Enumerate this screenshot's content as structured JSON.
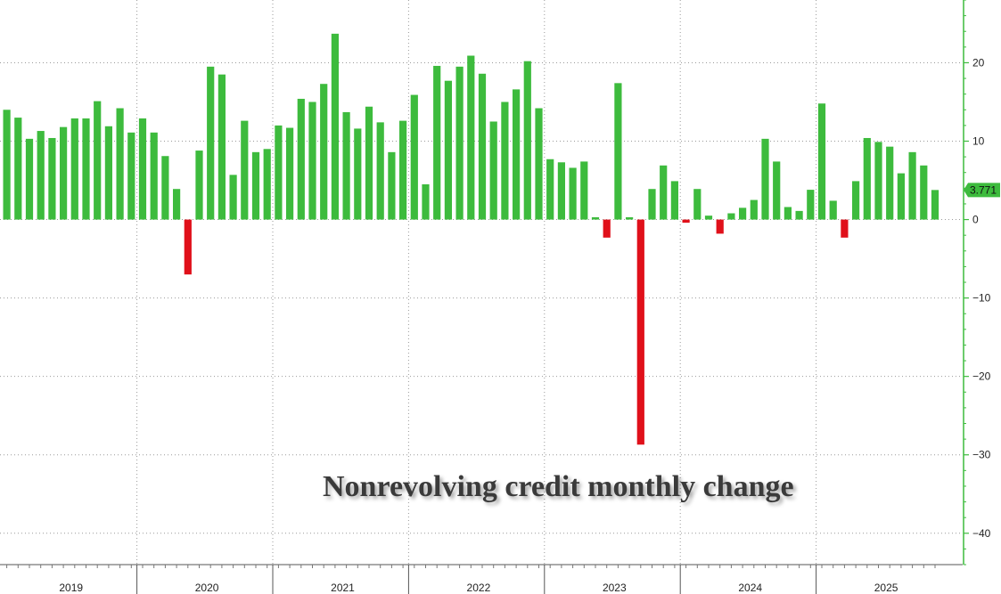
{
  "chart_data": {
    "type": "bar",
    "title": "Nonrevolving credit monthly change",
    "x_axis": {
      "tick_labels": [
        "2019",
        "2020",
        "2021",
        "2022",
        "2023",
        "2024",
        "2025"
      ]
    },
    "y_axis": {
      "ticks": [
        20,
        10,
        0,
        -10,
        -20,
        -30,
        -40
      ],
      "ylim": [
        -44,
        28
      ],
      "side": "right"
    },
    "last_value_label": "3.771",
    "grid": true,
    "colors": {
      "positive": "#3dbb3d",
      "negative": "#e0101a",
      "axis": "#3dbb3d",
      "grid": "#9a9a9a"
    },
    "values": [
      14.0,
      13.0,
      10.3,
      11.3,
      10.4,
      11.8,
      12.9,
      12.9,
      15.1,
      11.9,
      14.2,
      11.1,
      12.9,
      11.1,
      8.1,
      3.9,
      -7.0,
      8.8,
      19.5,
      18.5,
      5.7,
      12.6,
      8.6,
      9.0,
      12.0,
      11.7,
      15.4,
      15.0,
      17.3,
      23.7,
      13.7,
      11.6,
      14.4,
      12.4,
      8.6,
      12.6,
      15.9,
      4.5,
      19.6,
      17.7,
      19.5,
      20.9,
      18.6,
      12.5,
      15.0,
      16.6,
      20.2,
      14.2,
      7.7,
      7.3,
      6.6,
      7.4,
      0.3,
      -2.3,
      17.4,
      0.3,
      -28.7,
      3.9,
      6.9,
      4.9,
      -0.4,
      3.9,
      0.5,
      -1.8,
      0.8,
      1.5,
      2.5,
      10.3,
      7.4,
      1.6,
      1.1,
      3.8,
      14.8,
      2.4,
      -2.3,
      4.9,
      10.4,
      9.9,
      9.3,
      5.9,
      8.6,
      6.9,
      3.771
    ]
  }
}
